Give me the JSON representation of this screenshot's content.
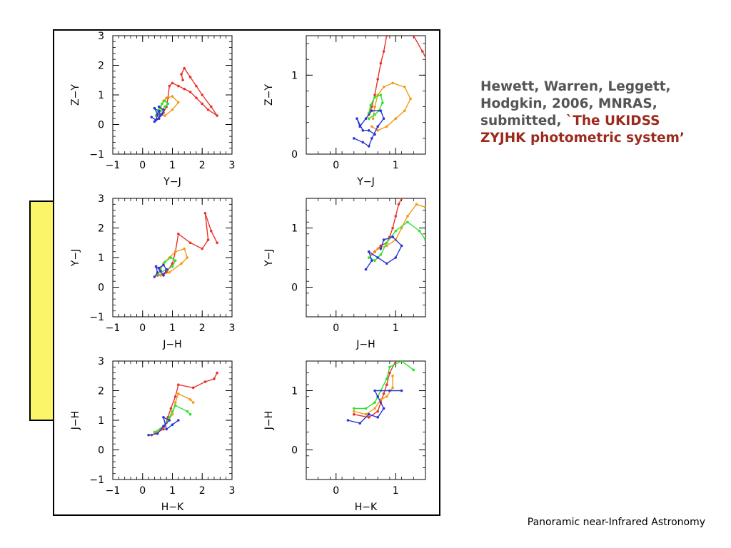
{
  "citation": {
    "authors_and_journal": "Hewett, Warren, Leggett, Hodgkin, 2006, MNRAS, submitted, ",
    "title": "`The UKIDSS ZYJHK photometric system’"
  },
  "footer": "Panoramic near-Infrared Astronomy",
  "colors": {
    "red": "#e8332a",
    "orange": "#f39a16",
    "green": "#29e52b",
    "blue": "#2b36d6",
    "note_fill": "#fbf56a",
    "citation_gray": "#555555",
    "citation_red": "#9b2a1c"
  },
  "chart_data": [
    {
      "type": "line",
      "xlabel": "Y−J",
      "ylabel": "Z−Y",
      "xlim": [
        -1,
        3
      ],
      "ylim": [
        3,
        -1
      ],
      "xticks": [
        "−1",
        "0",
        "1",
        "2",
        "3"
      ],
      "yticks": [
        "−1",
        "0",
        "1",
        "2",
        "3"
      ],
      "series": [
        {
          "color": "red",
          "points": [
            [
              0.5,
              0.3
            ],
            [
              0.7,
              0.4
            ],
            [
              0.8,
              0.6
            ],
            [
              0.85,
              0.9
            ],
            [
              0.9,
              1.3
            ],
            [
              1.0,
              1.4
            ],
            [
              1.2,
              1.3
            ],
            [
              1.4,
              1.2
            ],
            [
              1.6,
              1.1
            ],
            [
              1.8,
              0.9
            ],
            [
              2.0,
              0.7
            ],
            [
              2.2,
              0.5
            ],
            [
              2.5,
              0.3
            ],
            [
              2.3,
              0.6
            ],
            [
              2.0,
              1.0
            ],
            [
              1.8,
              1.3
            ],
            [
              1.6,
              1.6
            ],
            [
              1.4,
              1.9
            ],
            [
              1.3,
              1.7
            ],
            [
              1.35,
              1.5
            ]
          ]
        },
        {
          "color": "orange",
          "points": [
            [
              0.55,
              0.35
            ],
            [
              0.75,
              0.3
            ],
            [
              1.0,
              0.5
            ],
            [
              1.2,
              0.75
            ],
            [
              1.0,
              0.95
            ],
            [
              0.8,
              0.9
            ],
            [
              0.7,
              0.8
            ],
            [
              0.6,
              0.55
            ]
          ]
        },
        {
          "color": "green",
          "points": [
            [
              0.45,
              0.3
            ],
            [
              0.6,
              0.45
            ],
            [
              0.75,
              0.6
            ],
            [
              0.85,
              0.7
            ],
            [
              0.75,
              0.8
            ],
            [
              0.65,
              0.7
            ],
            [
              0.55,
              0.5
            ],
            [
              0.5,
              0.4
            ]
          ]
        },
        {
          "color": "blue",
          "points": [
            [
              0.3,
              0.25
            ],
            [
              0.45,
              0.15
            ],
            [
              0.5,
              0.35
            ],
            [
              0.4,
              0.55
            ],
            [
              0.55,
              0.45
            ],
            [
              0.6,
              0.3
            ],
            [
              0.55,
              0.2
            ],
            [
              0.4,
              0.1
            ],
            [
              0.65,
              0.35
            ],
            [
              0.7,
              0.5
            ],
            [
              0.55,
              0.6
            ]
          ]
        }
      ]
    },
    {
      "type": "line",
      "xlabel": "Y−J",
      "ylabel": "Z−Y",
      "xlim": [
        -0.5,
        1.5
      ],
      "ylim": [
        1.5,
        0
      ],
      "xticks": [
        "0",
        "1"
      ],
      "yticks": [
        "0",
        "1"
      ],
      "series": [
        {
          "color": "red",
          "points": [
            [
              0.55,
              0.5
            ],
            [
              0.6,
              0.6
            ],
            [
              0.65,
              0.75
            ],
            [
              0.7,
              0.95
            ],
            [
              0.75,
              1.15
            ],
            [
              0.8,
              1.3
            ],
            [
              0.85,
              1.5
            ]
          ]
        },
        {
          "color": "red",
          "points": [
            [
              1.3,
              1.5
            ],
            [
              1.45,
              1.3
            ],
            [
              1.55,
              1.15
            ]
          ]
        },
        {
          "color": "orange",
          "points": [
            [
              0.6,
              0.35
            ],
            [
              0.7,
              0.3
            ],
            [
              0.85,
              0.35
            ],
            [
              1.0,
              0.45
            ],
            [
              1.15,
              0.55
            ],
            [
              1.25,
              0.7
            ],
            [
              1.15,
              0.85
            ],
            [
              0.95,
              0.9
            ],
            [
              0.8,
              0.85
            ],
            [
              0.7,
              0.75
            ],
            [
              0.65,
              0.6
            ],
            [
              0.62,
              0.45
            ]
          ]
        },
        {
          "color": "green",
          "points": [
            [
              0.55,
              0.45
            ],
            [
              0.65,
              0.5
            ],
            [
              0.72,
              0.55
            ],
            [
              0.78,
              0.65
            ],
            [
              0.75,
              0.75
            ],
            [
              0.65,
              0.72
            ],
            [
              0.58,
              0.62
            ],
            [
              0.55,
              0.52
            ]
          ]
        },
        {
          "color": "blue",
          "points": [
            [
              0.3,
              0.2
            ],
            [
              0.45,
              0.15
            ],
            [
              0.55,
              0.1
            ],
            [
              0.6,
              0.2
            ],
            [
              0.7,
              0.35
            ],
            [
              0.8,
              0.45
            ],
            [
              0.75,
              0.55
            ],
            [
              0.6,
              0.55
            ],
            [
              0.5,
              0.45
            ],
            [
              0.4,
              0.35
            ],
            [
              0.35,
              0.45
            ],
            [
              0.45,
              0.3
            ],
            [
              0.55,
              0.3
            ],
            [
              0.65,
              0.25
            ]
          ]
        }
      ]
    },
    {
      "type": "line",
      "xlabel": "J−H",
      "ylabel": "Y−J",
      "xlim": [
        -1,
        3
      ],
      "ylim": [
        3,
        -1
      ],
      "xticks": [
        "−1",
        "0",
        "1",
        "2",
        "3"
      ],
      "yticks": [
        "−1",
        "0",
        "1",
        "2",
        "3"
      ],
      "series": [
        {
          "color": "red",
          "points": [
            [
              0.5,
              0.4
            ],
            [
              0.8,
              0.5
            ],
            [
              1.0,
              0.8
            ],
            [
              1.1,
              1.2
            ],
            [
              1.2,
              1.8
            ],
            [
              1.6,
              1.5
            ],
            [
              2.0,
              1.3
            ],
            [
              2.2,
              1.6
            ],
            [
              2.1,
              2.5
            ],
            [
              2.3,
              1.9
            ],
            [
              2.5,
              1.5
            ]
          ]
        },
        {
          "color": "orange",
          "points": [
            [
              0.6,
              0.4
            ],
            [
              0.9,
              0.5
            ],
            [
              1.3,
              0.8
            ],
            [
              1.5,
              1.0
            ],
            [
              1.4,
              1.3
            ],
            [
              1.1,
              1.2
            ],
            [
              0.9,
              1.0
            ],
            [
              0.7,
              0.8
            ],
            [
              0.6,
              0.6
            ]
          ]
        },
        {
          "color": "green",
          "points": [
            [
              0.5,
              0.45
            ],
            [
              0.8,
              0.6
            ],
            [
              1.0,
              0.7
            ],
            [
              1.1,
              0.9
            ],
            [
              0.95,
              1.0
            ],
            [
              0.75,
              0.85
            ],
            [
              0.6,
              0.65
            ]
          ]
        },
        {
          "color": "blue",
          "points": [
            [
              0.4,
              0.35
            ],
            [
              0.5,
              0.5
            ],
            [
              0.45,
              0.7
            ],
            [
              0.6,
              0.55
            ],
            [
              0.7,
              0.4
            ],
            [
              0.8,
              0.6
            ],
            [
              0.7,
              0.75
            ],
            [
              0.55,
              0.65
            ]
          ]
        }
      ]
    },
    {
      "type": "line",
      "xlabel": "J−H",
      "ylabel": "Y−J",
      "xlim": [
        -0.5,
        1.5
      ],
      "ylim": [
        1.5,
        -0.5
      ],
      "xticks": [
        "0",
        "1"
      ],
      "yticks": [
        "0",
        "1"
      ],
      "series": [
        {
          "color": "red",
          "points": [
            [
              0.65,
              0.6
            ],
            [
              0.75,
              0.7
            ],
            [
              0.85,
              0.75
            ],
            [
              0.9,
              0.85
            ],
            [
              0.95,
              1.0
            ],
            [
              1.0,
              1.2
            ],
            [
              1.05,
              1.4
            ],
            [
              1.1,
              1.5
            ]
          ]
        },
        {
          "color": "orange",
          "points": [
            [
              0.6,
              0.55
            ],
            [
              0.7,
              0.65
            ],
            [
              0.85,
              0.7
            ],
            [
              1.0,
              0.8
            ],
            [
              1.1,
              1.0
            ],
            [
              1.2,
              1.2
            ],
            [
              1.35,
              1.4
            ],
            [
              1.5,
              1.35
            ]
          ]
        },
        {
          "color": "green",
          "points": [
            [
              0.55,
              0.5
            ],
            [
              0.65,
              0.45
            ],
            [
              0.75,
              0.55
            ],
            [
              0.85,
              0.75
            ],
            [
              1.0,
              0.95
            ],
            [
              1.2,
              1.1
            ],
            [
              1.4,
              0.95
            ],
            [
              1.5,
              0.8
            ]
          ]
        },
        {
          "color": "blue",
          "points": [
            [
              0.5,
              0.3
            ],
            [
              0.6,
              0.45
            ],
            [
              0.55,
              0.6
            ],
            [
              0.7,
              0.5
            ],
            [
              0.85,
              0.4
            ],
            [
              1.0,
              0.5
            ],
            [
              1.1,
              0.7
            ],
            [
              0.95,
              0.85
            ],
            [
              0.8,
              0.8
            ],
            [
              0.75,
              0.65
            ]
          ]
        }
      ]
    },
    {
      "type": "line",
      "xlabel": "H−K",
      "ylabel": "J−H",
      "xlim": [
        -1,
        3
      ],
      "ylim": [
        3,
        -1
      ],
      "xticks": [
        "−1",
        "0",
        "1",
        "2",
        "3"
      ],
      "yticks": [
        "−1",
        "0",
        "1",
        "2",
        "3"
      ],
      "series": [
        {
          "color": "red",
          "points": [
            [
              0.3,
              0.5
            ],
            [
              0.7,
              0.7
            ],
            [
              0.85,
              1.1
            ],
            [
              0.95,
              1.4
            ],
            [
              1.1,
              1.8
            ],
            [
              1.2,
              2.2
            ],
            [
              1.7,
              2.1
            ],
            [
              2.1,
              2.3
            ],
            [
              2.4,
              2.4
            ],
            [
              2.5,
              2.6
            ]
          ]
        },
        {
          "color": "orange",
          "points": [
            [
              0.5,
              0.6
            ],
            [
              0.8,
              0.9
            ],
            [
              1.0,
              1.2
            ],
            [
              1.1,
              1.6
            ],
            [
              1.2,
              1.9
            ],
            [
              1.6,
              1.7
            ],
            [
              1.7,
              1.6
            ]
          ]
        },
        {
          "color": "green",
          "points": [
            [
              0.4,
              0.6
            ],
            [
              0.7,
              0.8
            ],
            [
              0.9,
              1.1
            ],
            [
              1.0,
              1.3
            ],
            [
              1.1,
              1.5
            ],
            [
              1.5,
              1.3
            ],
            [
              1.6,
              1.2
            ]
          ]
        },
        {
          "color": "blue",
          "points": [
            [
              0.2,
              0.5
            ],
            [
              0.5,
              0.55
            ],
            [
              0.7,
              0.8
            ],
            [
              0.9,
              1.0
            ],
            [
              0.7,
              1.1
            ],
            [
              0.8,
              0.7
            ],
            [
              1.0,
              0.85
            ],
            [
              1.2,
              1.0
            ]
          ]
        }
      ]
    },
    {
      "type": "line",
      "xlabel": "H−K",
      "ylabel": "J−H",
      "xlim": [
        -0.5,
        1.5
      ],
      "ylim": [
        1.5,
        -0.5
      ],
      "xticks": [
        "0",
        "1"
      ],
      "yticks": [
        "0",
        "1"
      ],
      "series": [
        {
          "color": "red",
          "points": [
            [
              0.3,
              0.6
            ],
            [
              0.55,
              0.55
            ],
            [
              0.7,
              0.65
            ],
            [
              0.75,
              0.8
            ],
            [
              0.8,
              0.95
            ],
            [
              0.85,
              1.1
            ],
            [
              0.9,
              1.3
            ],
            [
              1.0,
              1.5
            ]
          ]
        },
        {
          "color": "orange",
          "points": [
            [
              0.3,
              0.65
            ],
            [
              0.5,
              0.6
            ],
            [
              0.65,
              0.7
            ],
            [
              0.75,
              0.85
            ],
            [
              0.85,
              0.9
            ],
            [
              0.95,
              1.05
            ],
            [
              0.95,
              1.25
            ]
          ]
        },
        {
          "color": "green",
          "points": [
            [
              0.3,
              0.7
            ],
            [
              0.5,
              0.7
            ],
            [
              0.65,
              0.8
            ],
            [
              0.75,
              1.0
            ],
            [
              0.85,
              1.2
            ],
            [
              0.9,
              1.4
            ],
            [
              1.1,
              1.5
            ],
            [
              1.3,
              1.35
            ]
          ]
        },
        {
          "color": "blue",
          "points": [
            [
              0.2,
              0.5
            ],
            [
              0.4,
              0.45
            ],
            [
              0.55,
              0.6
            ],
            [
              0.7,
              0.55
            ],
            [
              0.8,
              0.7
            ],
            [
              0.7,
              0.9
            ],
            [
              0.65,
              1.0
            ],
            [
              0.9,
              1.0
            ],
            [
              1.1,
              1.0
            ]
          ]
        }
      ]
    }
  ]
}
